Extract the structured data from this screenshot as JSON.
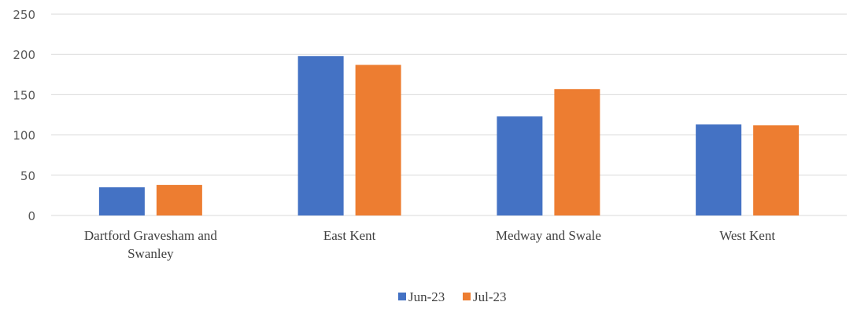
{
  "chart_data": {
    "type": "bar",
    "categories": [
      [
        "Dartford Gravesham and",
        "Swanley"
      ],
      [
        "East Kent"
      ],
      [
        "Medway and Swale"
      ],
      [
        "West Kent"
      ]
    ],
    "series": [
      {
        "name": "Jun-23",
        "color": "#4472C4",
        "values": [
          35,
          198,
          123,
          113
        ]
      },
      {
        "name": "Jul-23",
        "color": "#ED7D31",
        "values": [
          38,
          187,
          157,
          112
        ]
      }
    ],
    "yticks": [
      "0",
      "50",
      "100",
      "150",
      "200",
      "250"
    ],
    "ylim": [
      0,
      250
    ],
    "grid": true,
    "legend": "bottom-center"
  }
}
